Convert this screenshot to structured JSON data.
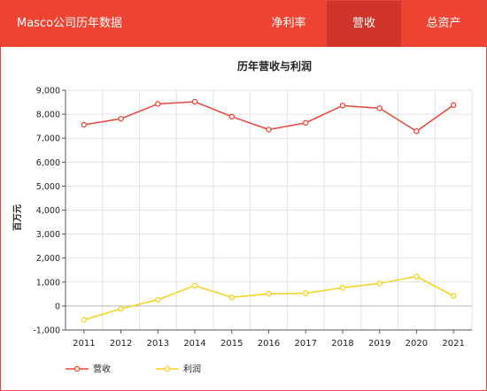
{
  "header": {
    "title": "Masco公司历年数据",
    "tabs": [
      {
        "label": "净利率",
        "active": false
      },
      {
        "label": "营收",
        "active": true
      },
      {
        "label": "总资产",
        "active": false
      }
    ],
    "bg_color": "#ef4433",
    "active_tab_color": "#cf3528"
  },
  "chart_data": {
    "type": "line",
    "title": "历年营收与利润",
    "ylabel": "百万元",
    "xlabel": "",
    "categories": [
      "2011",
      "2012",
      "2013",
      "2014",
      "2015",
      "2016",
      "2017",
      "2018",
      "2019",
      "2020",
      "2021"
    ],
    "ylim": [
      -1000,
      9000
    ],
    "yticks": [
      -1000,
      0,
      1000,
      2000,
      3000,
      4000,
      5000,
      6000,
      7000,
      8000,
      9000
    ],
    "ytick_labels": [
      "-1,000",
      "0",
      "1,000",
      "2,000",
      "3,000",
      "4,000",
      "5,000",
      "6,000",
      "7,000",
      "8,000",
      "9,000"
    ],
    "grid": true,
    "legend_position": "bottom-left",
    "series": [
      {
        "name": "营收",
        "color": "#e8463a",
        "values": [
          7560,
          7810,
          8430,
          8520,
          7900,
          7360,
          7640,
          8360,
          8250,
          7290,
          8380
        ]
      },
      {
        "name": "利润",
        "color": "#f5d21d",
        "values": [
          -580,
          -120,
          260,
          850,
          360,
          510,
          530,
          760,
          940,
          1230,
          420
        ]
      }
    ]
  }
}
